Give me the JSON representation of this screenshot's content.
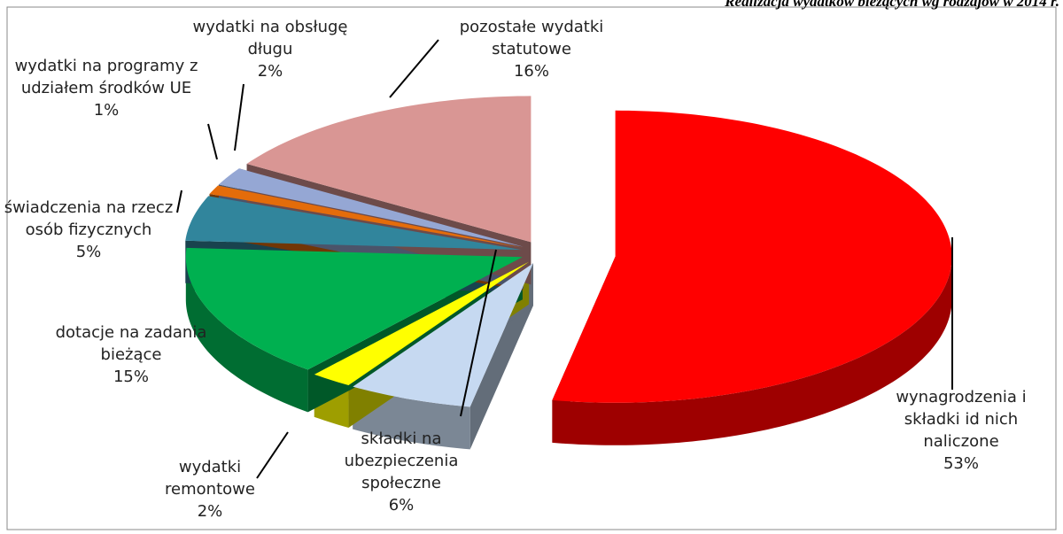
{
  "chart_data": {
    "type": "pie3d",
    "title": "Realizacja wydatków bieżących wg rodzajów w 2014 r.",
    "categories": [
      "wynagrodzenia i składki id nich naliczone",
      "składki na ubezpieczenia społeczne",
      "wydatki remontowe",
      "dotacje na zadania bieżące",
      "świadczenia na rzecz osób fizycznych",
      "wydatki na programy z udziałem środków UE",
      "wydatki na obsługę długu",
      "pozostałe wydatki statutowe"
    ],
    "values": [
      53,
      6,
      2,
      15,
      5,
      1,
      2,
      16
    ],
    "value_labels": [
      "53%",
      "6%",
      "2%",
      "15%",
      "5%",
      "1%",
      "2%",
      "16%"
    ],
    "colors": [
      "#ff0000",
      "#c6d9f1",
      "#ffff00",
      "#00b050",
      "#31859c",
      "#e46c0a",
      "#95a7d4",
      "#d99694"
    ]
  }
}
